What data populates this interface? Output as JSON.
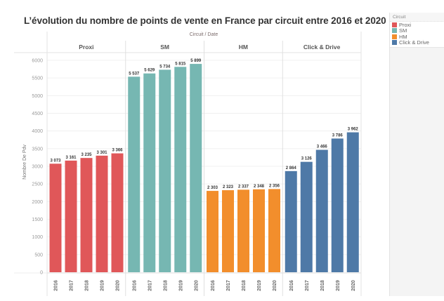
{
  "chart_data": {
    "type": "bar",
    "title": "L’évolution du nombre de points de vente en France par circuit entre 2016 et 2020",
    "column_header": "Circuit / Date",
    "ylabel": "Nombre De Pdv",
    "xlabel": "",
    "ylim": [
      0,
      6000
    ],
    "yticks": [
      "0",
      "500",
      "1000",
      "1500",
      "2000",
      "2500",
      "3000",
      "3500",
      "4000",
      "4500",
      "5000",
      "5500",
      "6000"
    ],
    "ytick_values": [
      0,
      500,
      1000,
      1500,
      2000,
      2500,
      3000,
      3500,
      4000,
      4500,
      5000,
      5500,
      6000
    ],
    "grid": true,
    "categories": [
      "2016",
      "2017",
      "2018",
      "2019",
      "2020"
    ],
    "panels": [
      {
        "name": "Proxi",
        "color": "#e05759",
        "values": [
          3073,
          3161,
          3235,
          3301,
          3366
        ],
        "labels": [
          "3 073",
          "3 161",
          "3 235",
          "3 301",
          "3 366"
        ]
      },
      {
        "name": "SM",
        "color": "#76b7b2",
        "values": [
          5537,
          5629,
          5734,
          5815,
          5899
        ],
        "labels": [
          "5 537",
          "5 629",
          "5 734",
          "5 815",
          "5 899"
        ]
      },
      {
        "name": "HM",
        "color": "#f28e2c",
        "values": [
          2303,
          2323,
          2337,
          2348,
          2356
        ],
        "labels": [
          "2 303",
          "2 323",
          "2 337",
          "2 348",
          "2 356"
        ]
      },
      {
        "name": "Click & Drive",
        "color": "#4e79a7",
        "values": [
          2864,
          3126,
          3466,
          3786,
          3962
        ],
        "labels": [
          "2 864",
          "3 126",
          "3 466",
          "3 786",
          "3 962"
        ]
      }
    ],
    "legend": {
      "title": "Circuit",
      "placement": "right",
      "entries": [
        {
          "label": "Proxi",
          "color": "#e05759"
        },
        {
          "label": "SM",
          "color": "#76b7b2"
        },
        {
          "label": "HM",
          "color": "#f28e2c"
        },
        {
          "label": "Click & Drive",
          "color": "#4e79a7"
        }
      ]
    }
  }
}
